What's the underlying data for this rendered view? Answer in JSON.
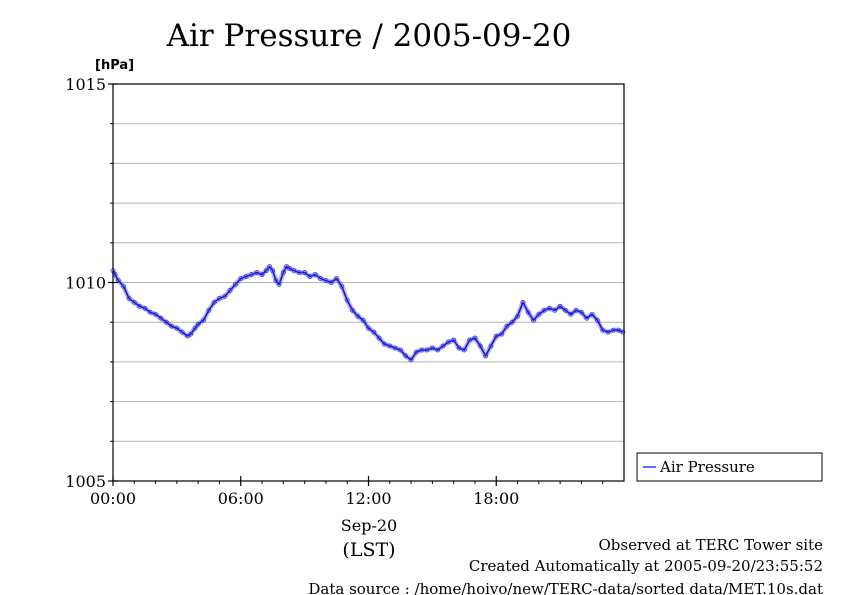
{
  "chart_data": {
    "type": "line",
    "title": "Air Pressure / 2005-09-20",
    "ylabel": "[hPa]",
    "ylim": [
      1005,
      1015
    ],
    "yticks": [
      1005,
      1010,
      1015
    ],
    "y_minor_step": 1,
    "x_range_hours": [
      0,
      24
    ],
    "xtick_labels": [
      {
        "hour": 0,
        "label": "00:00"
      },
      {
        "hour": 6,
        "label": "06:00"
      },
      {
        "hour": 12,
        "label": "12:00"
      },
      {
        "hour": 18,
        "label": "18:00"
      }
    ],
    "xlabel_date": "Sep-20",
    "xlabel_tz": "(LST)",
    "grid": true,
    "legend_position": "right",
    "series": [
      {
        "name": "Air Pressure",
        "color": "#3333ff",
        "x_hours": [
          0.0,
          0.1,
          0.25,
          0.5,
          0.75,
          1.0,
          1.25,
          1.5,
          1.75,
          2.0,
          2.25,
          2.5,
          2.75,
          3.0,
          3.25,
          3.5,
          3.65,
          3.85,
          4.0,
          4.25,
          4.5,
          4.75,
          5.0,
          5.25,
          5.5,
          5.75,
          6.0,
          6.25,
          6.5,
          6.75,
          7.0,
          7.2,
          7.35,
          7.5,
          7.65,
          7.8,
          8.0,
          8.15,
          8.3,
          8.5,
          8.75,
          9.0,
          9.25,
          9.5,
          9.75,
          10.0,
          10.25,
          10.5,
          10.75,
          11.0,
          11.25,
          11.5,
          11.75,
          12.0,
          12.25,
          12.5,
          12.75,
          13.0,
          13.25,
          13.5,
          13.75,
          14.0,
          14.25,
          14.5,
          14.75,
          15.0,
          15.25,
          15.5,
          15.75,
          16.0,
          16.25,
          16.5,
          16.75,
          17.0,
          17.25,
          17.5,
          17.75,
          18.0,
          18.25,
          18.5,
          18.75,
          19.0,
          19.25,
          19.5,
          19.75,
          20.0,
          20.25,
          20.5,
          20.75,
          21.0,
          21.25,
          21.5,
          21.75,
          22.0,
          22.25,
          22.5,
          22.75,
          23.0,
          23.25,
          23.5,
          23.75,
          23.95
        ],
        "values": [
          1010.3,
          1010.2,
          1010.05,
          1009.9,
          1009.6,
          1009.5,
          1009.4,
          1009.35,
          1009.25,
          1009.2,
          1009.1,
          1009.0,
          1008.9,
          1008.85,
          1008.75,
          1008.65,
          1008.7,
          1008.85,
          1008.95,
          1009.05,
          1009.3,
          1009.5,
          1009.6,
          1009.65,
          1009.8,
          1009.95,
          1010.1,
          1010.15,
          1010.2,
          1010.25,
          1010.2,
          1010.3,
          1010.4,
          1010.3,
          1010.05,
          1009.95,
          1010.25,
          1010.4,
          1010.35,
          1010.3,
          1010.25,
          1010.25,
          1010.15,
          1010.2,
          1010.1,
          1010.05,
          1010.0,
          1010.1,
          1009.9,
          1009.55,
          1009.3,
          1009.15,
          1009.05,
          1008.85,
          1008.75,
          1008.6,
          1008.45,
          1008.4,
          1008.35,
          1008.3,
          1008.15,
          1008.05,
          1008.25,
          1008.3,
          1008.3,
          1008.35,
          1008.3,
          1008.4,
          1008.5,
          1008.55,
          1008.35,
          1008.3,
          1008.55,
          1008.6,
          1008.4,
          1008.15,
          1008.4,
          1008.65,
          1008.7,
          1008.9,
          1009.0,
          1009.15,
          1009.5,
          1009.25,
          1009.05,
          1009.2,
          1009.3,
          1009.35,
          1009.3,
          1009.4,
          1009.3,
          1009.2,
          1009.3,
          1009.25,
          1009.1,
          1009.2,
          1009.05,
          1008.8,
          1008.75,
          1008.8,
          1008.8,
          1008.75
        ]
      }
    ]
  },
  "footer": {
    "line1": "Observed at TERC Tower site",
    "line2": "Created Automatically at 2005-09-20/23:55:52",
    "line3": "Data source : /home/hoivo/new/TERC-data/sorted  data/MET.10s.dat"
  }
}
